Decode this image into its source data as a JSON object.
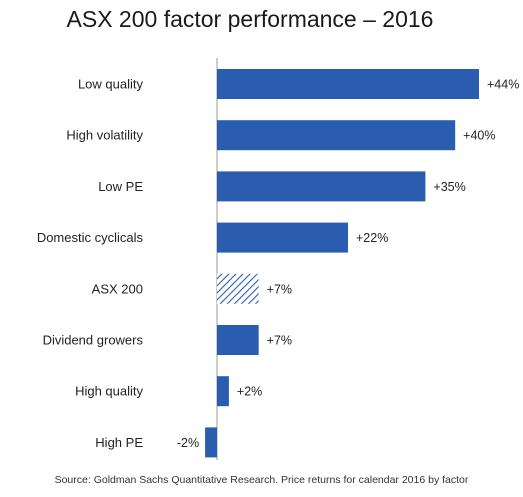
{
  "chart_data": {
    "type": "bar",
    "orientation": "horizontal",
    "title": "ASX 200 factor performance  – 2016",
    "source": "Source: Goldman Sachs Quantitative  Research. Price returns for calendar 2016  by factor",
    "categories": [
      "Low quality",
      "High volatility",
      "Low PE",
      "Domestic cyclicals",
      "ASX 200",
      "Dividend growers",
      "High quality",
      "High PE"
    ],
    "values": [
      44,
      40,
      35,
      22,
      7,
      7,
      2,
      -2
    ],
    "value_labels": [
      "+44%",
      "+40%",
      "+35%",
      "+22%",
      "+7%",
      "+7%",
      "+2%",
      "-2%"
    ],
    "highlight_category": "ASX 200",
    "xlim": [
      -2,
      44
    ],
    "grid": false,
    "xlabel": "",
    "ylabel": "",
    "colors": {
      "bar": "#2a5db0",
      "highlight_pattern": "#2a5db0",
      "axis": "#999999"
    }
  }
}
